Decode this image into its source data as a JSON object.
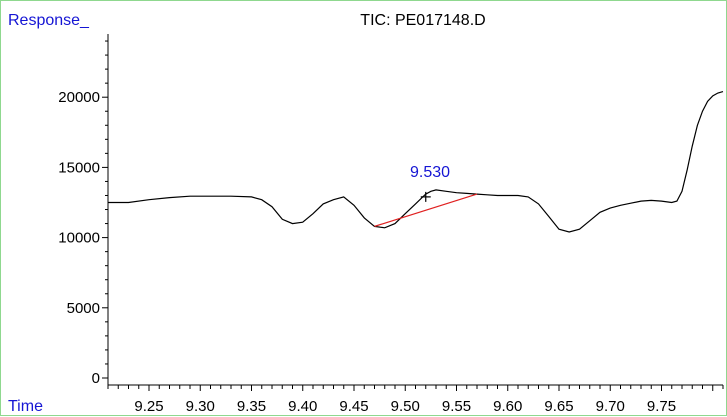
{
  "chart_data": {
    "type": "line",
    "title": "TIC: PE017148.D",
    "ylabel": "Response_",
    "xlabel": "Time",
    "xlim": [
      9.21,
      9.81
    ],
    "ylim": [
      0,
      25000
    ],
    "x_ticks": [
      "9.25",
      "9.30",
      "9.35",
      "9.40",
      "9.45",
      "9.50",
      "9.55",
      "9.60",
      "9.65",
      "9.70",
      "9.75"
    ],
    "x_tick_values": [
      9.25,
      9.3,
      9.35,
      9.4,
      9.45,
      9.5,
      9.55,
      9.6,
      9.65,
      9.7,
      9.75
    ],
    "y_ticks": [
      "0",
      "5000",
      "10000",
      "15000",
      "20000"
    ],
    "y_tick_values": [
      0,
      5000,
      10000,
      15000,
      20000
    ],
    "series": [
      {
        "color": "#000000",
        "x": [
          9.21,
          9.23,
          9.25,
          9.27,
          9.29,
          9.31,
          9.33,
          9.35,
          9.36,
          9.37,
          9.38,
          9.39,
          9.4,
          9.41,
          9.42,
          9.43,
          9.44,
          9.45,
          9.46,
          9.47,
          9.48,
          9.49,
          9.5,
          9.51,
          9.52,
          9.525,
          9.53,
          9.54,
          9.55,
          9.56,
          9.57,
          9.58,
          9.59,
          9.6,
          9.61,
          9.62,
          9.63,
          9.64,
          9.65,
          9.66,
          9.67,
          9.68,
          9.69,
          9.7,
          9.71,
          9.72,
          9.73,
          9.74,
          9.75,
          9.76,
          9.765,
          9.77,
          9.775,
          9.78,
          9.785,
          9.79,
          9.795,
          9.8,
          9.805,
          9.81
        ],
        "y": [
          12500,
          12500,
          12700,
          12850,
          12950,
          12950,
          12950,
          12900,
          12700,
          12200,
          11300,
          11000,
          11100,
          11700,
          12400,
          12700,
          12900,
          12300,
          11400,
          10800,
          10700,
          11000,
          11700,
          12400,
          13100,
          13300,
          13400,
          13300,
          13200,
          13150,
          13100,
          13050,
          13000,
          13000,
          13000,
          12900,
          12400,
          11500,
          10600,
          10400,
          10600,
          11200,
          11800,
          12100,
          12300,
          12450,
          12600,
          12650,
          12600,
          12500,
          12600,
          13300,
          14800,
          16500,
          18000,
          19000,
          19700,
          20100,
          20300,
          20400
        ]
      }
    ],
    "annotations": [
      {
        "text": "9.530",
        "x": 9.53,
        "y": 13400,
        "color": "#1515d4"
      }
    ],
    "baseline": {
      "x": [
        9.47,
        9.57
      ],
      "y": [
        10800,
        13100
      ],
      "color": "#e02020"
    },
    "peak_marker": {
      "x": 9.52,
      "y": 12900
    },
    "grid": false
  }
}
